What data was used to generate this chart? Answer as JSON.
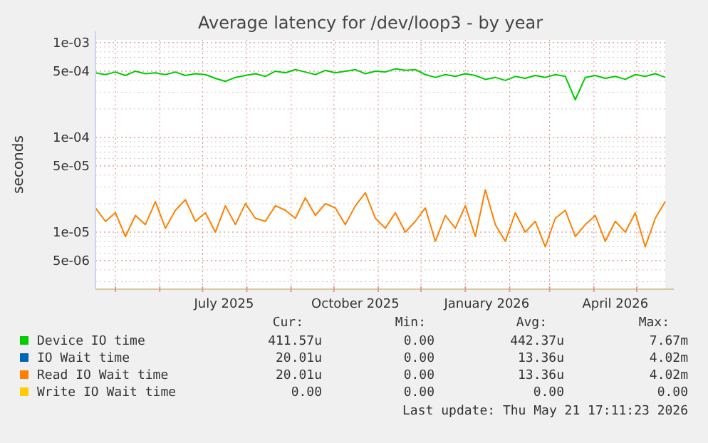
{
  "chart_data": {
    "type": "line",
    "title": "Average latency for /dev/loop3 - by year",
    "ylabel": "seconds",
    "log": "y",
    "grid": true,
    "legend": "bottom",
    "marker": "none",
    "line_style": "solid",
    "x": [
      "2025-04-17",
      "2025-04-24",
      "2025-05-01",
      "2025-05-08",
      "2025-05-15",
      "2025-05-22",
      "2025-05-29",
      "2025-06-05",
      "2025-06-12",
      "2025-06-19",
      "2025-06-26",
      "2025-07-03",
      "2025-07-10",
      "2025-07-17",
      "2025-07-24",
      "2025-07-31",
      "2025-08-07",
      "2025-08-14",
      "2025-08-21",
      "2025-08-28",
      "2025-09-04",
      "2025-09-11",
      "2025-09-18",
      "2025-09-25",
      "2025-10-02",
      "2025-10-09",
      "2025-10-16",
      "2025-10-23",
      "2025-10-30",
      "2025-11-06",
      "2025-11-13",
      "2025-11-20",
      "2025-11-27",
      "2025-12-04",
      "2025-12-11",
      "2025-12-18",
      "2025-12-25",
      "2026-01-01",
      "2026-01-08",
      "2026-01-15",
      "2026-01-22",
      "2026-01-29",
      "2026-02-05",
      "2026-02-12",
      "2026-02-19",
      "2026-02-26",
      "2026-03-05",
      "2026-03-12",
      "2026-03-19",
      "2026-03-26",
      "2026-04-02",
      "2026-04-09",
      "2026-04-16",
      "2026-04-23",
      "2026-04-30",
      "2026-05-07",
      "2026-05-14",
      "2026-05-21"
    ],
    "xlim": [
      "2025-04-17",
      "2026-05-21"
    ],
    "xticks": [
      {
        "value": "2025-05-01",
        "label": null
      },
      {
        "value": "2025-06-01",
        "label": null
      },
      {
        "value": "2025-07-01",
        "label": null
      },
      {
        "value": "2025-07-16",
        "label": "July 2025"
      },
      {
        "value": "2025-08-01",
        "label": null
      },
      {
        "value": "2025-09-01",
        "label": null
      },
      {
        "value": "2025-10-01",
        "label": null
      },
      {
        "value": "2025-10-16",
        "label": "October 2025"
      },
      {
        "value": "2025-11-01",
        "label": null
      },
      {
        "value": "2025-12-01",
        "label": null
      },
      {
        "value": "2026-01-01",
        "label": null
      },
      {
        "value": "2026-01-16",
        "label": "January 2026"
      },
      {
        "value": "2026-02-01",
        "label": null
      },
      {
        "value": "2026-03-01",
        "label": null
      },
      {
        "value": "2026-04-01",
        "label": null
      },
      {
        "value": "2026-04-16",
        "label": "April 2026"
      },
      {
        "value": "2026-05-01",
        "label": null
      }
    ],
    "ylim": [
      2.5e-06,
      0.00107
    ],
    "yticks": [
      {
        "value": 0.001,
        "label": "1e-03"
      },
      {
        "value": 0.0005,
        "label": "5e-04"
      },
      {
        "value": 0.0001,
        "label": "1e-04"
      },
      {
        "value": 5e-05,
        "label": "5e-05"
      },
      {
        "value": 1e-05,
        "label": "1e-05"
      },
      {
        "value": 5e-06,
        "label": "5e-06"
      }
    ],
    "series": [
      {
        "name": "Device IO time",
        "color": "#00cc00",
        "values": [
          0.00048,
          0.00046,
          0.00049,
          0.00045,
          0.0005,
          0.00047,
          0.00048,
          0.00046,
          0.00049,
          0.00045,
          0.00047,
          0.00046,
          0.00042,
          0.00039,
          0.00043,
          0.00045,
          0.00047,
          0.00044,
          0.0005,
          0.00048,
          0.00052,
          0.00049,
          0.00046,
          0.00051,
          0.00048,
          0.0005,
          0.00052,
          0.00047,
          0.0005,
          0.00049,
          0.00053,
          0.00051,
          0.00052,
          0.00046,
          0.00043,
          0.00046,
          0.00044,
          0.00047,
          0.00045,
          0.00041,
          0.00043,
          0.0004,
          0.00044,
          0.00042,
          0.00045,
          0.00043,
          0.00046,
          0.00044,
          0.00025,
          0.00043,
          0.00045,
          0.00042,
          0.00044,
          0.00041,
          0.00046,
          0.00044,
          0.00047,
          0.00043
        ]
      },
      {
        "name": "IO Wait time",
        "color": "#0066b3",
        "values": [
          null,
          null,
          null,
          null,
          null,
          null,
          null,
          null,
          null,
          null,
          null,
          null,
          null,
          null,
          null,
          null,
          null,
          null,
          null,
          null,
          null,
          null,
          null,
          null,
          null,
          null,
          null,
          null,
          null,
          null,
          null,
          null,
          null,
          null,
          null,
          null,
          null,
          null,
          null,
          null,
          null,
          null,
          null,
          null,
          null,
          null,
          null,
          null,
          null,
          null,
          null,
          null,
          null,
          null,
          null,
          null,
          null,
          null
        ]
      },
      {
        "name": "Read IO Wait time",
        "color": "#ff8000",
        "values": [
          1.8e-05,
          1.3e-05,
          1.6e-05,
          9e-06,
          1.5e-05,
          1.2e-05,
          2.1e-05,
          1.1e-05,
          1.7e-05,
          2.2e-05,
          1.3e-05,
          1.6e-05,
          1e-05,
          1.9e-05,
          1.2e-05,
          2e-05,
          1.4e-05,
          1.3e-05,
          1.9e-05,
          1.7e-05,
          1.4e-05,
          2.3e-05,
          1.5e-05,
          2e-05,
          1.8e-05,
          1.2e-05,
          1.9e-05,
          2.6e-05,
          1.4e-05,
          1.1e-05,
          1.6e-05,
          1e-05,
          1.3e-05,
          1.8e-05,
          8e-06,
          1.5e-05,
          1.1e-05,
          1.9e-05,
          9e-06,
          2.8e-05,
          1.2e-05,
          8e-06,
          1.6e-05,
          1e-05,
          1.3e-05,
          7e-06,
          1.4e-05,
          1.7e-05,
          9e-06,
          1.2e-05,
          1.5e-05,
          8e-06,
          1.3e-05,
          1e-05,
          1.6e-05,
          7e-06,
          1.4e-05,
          2.1e-05
        ]
      },
      {
        "name": "Write IO Wait time",
        "color": "#ffcc00",
        "values": [
          null,
          null,
          null,
          null,
          null,
          null,
          null,
          null,
          null,
          null,
          null,
          null,
          null,
          null,
          null,
          null,
          null,
          null,
          null,
          null,
          null,
          null,
          null,
          null,
          null,
          null,
          null,
          null,
          null,
          null,
          null,
          null,
          null,
          null,
          null,
          null,
          null,
          null,
          null,
          null,
          null,
          null,
          null,
          null,
          null,
          null,
          null,
          null,
          null,
          null,
          null,
          null,
          null,
          null,
          null,
          null,
          null,
          null
        ]
      }
    ],
    "annotations": [
      "Cur:",
      "Min:",
      "Avg:",
      "Max:",
      "411.57u",
      "0.00",
      "442.37u",
      "7.67m",
      "20.01u",
      "0.00",
      "13.36u",
      "4.02m",
      "20.01u",
      "0.00",
      "13.36u",
      "4.02m",
      "0.00",
      "0.00",
      "0.00",
      "0.00",
      "Last update: Thu May 21 17:11:23 2026"
    ]
  }
}
